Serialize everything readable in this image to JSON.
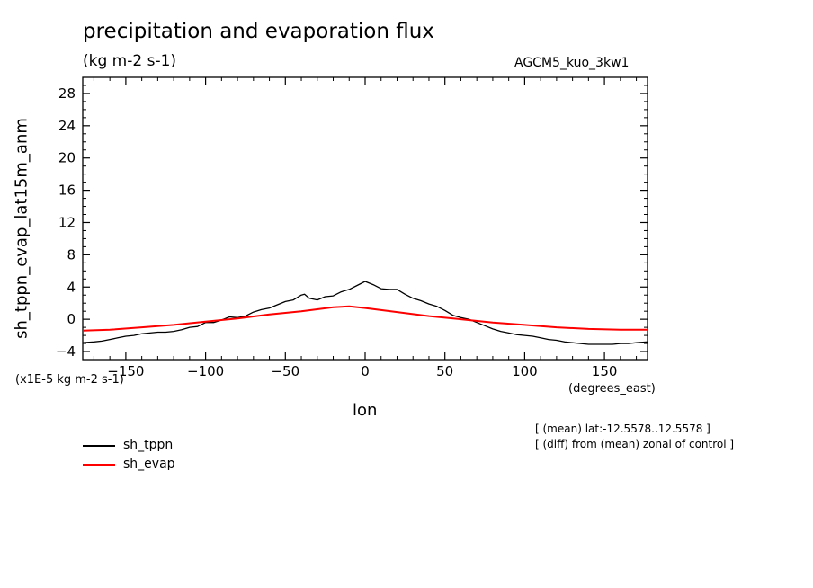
{
  "header": {
    "title": "precipitation and evaporation flux",
    "subtitle": "(kg m-2 s-1)",
    "model": "AGCM5_kuo_3kw1"
  },
  "annotations": {
    "y_units": "(x1E-5 kg m-2 s-1)",
    "x_units": "(degrees_east)",
    "note_mean": "[ (mean) lat:-12.5578..12.5578 ]",
    "note_diff": "[ (diff) from (mean) zonal of control ]"
  },
  "chart_data": {
    "type": "line",
    "title": "precipitation and evaporation flux",
    "xlabel": "lon",
    "ylabel": "sh_tppn_evap_lat15m_anm",
    "xlim": [
      -177,
      177
    ],
    "ylim": [
      -5,
      30
    ],
    "xticks": [
      -150,
      -100,
      -50,
      0,
      50,
      100,
      150
    ],
    "yticks": [
      -4,
      0,
      4,
      8,
      12,
      16,
      20,
      24,
      28
    ],
    "legend_position": "bottom-left",
    "series": [
      {
        "name": "sh_tppn",
        "color": "#000000",
        "x": [
          -177,
          -170,
          -165,
          -160,
          -155,
          -150,
          -145,
          -140,
          -135,
          -130,
          -125,
          -120,
          -115,
          -110,
          -105,
          -100,
          -95,
          -90,
          -85,
          -80,
          -75,
          -70,
          -65,
          -60,
          -55,
          -50,
          -45,
          -40,
          -38,
          -35,
          -30,
          -25,
          -20,
          -15,
          -10,
          -5,
          0,
          5,
          10,
          15,
          20,
          25,
          30,
          35,
          40,
          45,
          50,
          55,
          60,
          65,
          70,
          75,
          80,
          85,
          90,
          95,
          100,
          105,
          110,
          115,
          120,
          125,
          130,
          135,
          140,
          145,
          150,
          155,
          160,
          165,
          170,
          177
        ],
        "values": [
          -2.9,
          -2.8,
          -2.7,
          -2.5,
          -2.3,
          -2.1,
          -2.0,
          -1.8,
          -1.7,
          -1.6,
          -1.6,
          -1.5,
          -1.3,
          -1.0,
          -0.9,
          -0.4,
          -0.4,
          -0.1,
          0.3,
          0.2,
          0.4,
          0.9,
          1.2,
          1.4,
          1.8,
          2.2,
          2.4,
          3.0,
          3.1,
          2.6,
          2.4,
          2.8,
          2.9,
          3.4,
          3.7,
          4.2,
          4.7,
          4.3,
          3.8,
          3.7,
          3.7,
          3.1,
          2.6,
          2.3,
          1.9,
          1.6,
          1.1,
          0.5,
          0.2,
          0.0,
          -0.4,
          -0.8,
          -1.2,
          -1.5,
          -1.7,
          -1.9,
          -2.0,
          -2.1,
          -2.3,
          -2.5,
          -2.6,
          -2.8,
          -2.9,
          -3.0,
          -3.1,
          -3.1,
          -3.1,
          -3.1,
          -3.0,
          -3.0,
          -2.9,
          -2.8
        ]
      },
      {
        "name": "sh_evap",
        "color": "#ff0000",
        "x": [
          -177,
          -160,
          -140,
          -120,
          -100,
          -80,
          -60,
          -40,
          -20,
          -10,
          0,
          20,
          40,
          60,
          80,
          100,
          120,
          140,
          160,
          177
        ],
        "values": [
          -1.4,
          -1.3,
          -1.0,
          -0.7,
          -0.3,
          0.1,
          0.6,
          1.0,
          1.5,
          1.6,
          1.4,
          0.9,
          0.4,
          0.0,
          -0.4,
          -0.7,
          -1.0,
          -1.2,
          -1.3,
          -1.3
        ]
      }
    ]
  }
}
